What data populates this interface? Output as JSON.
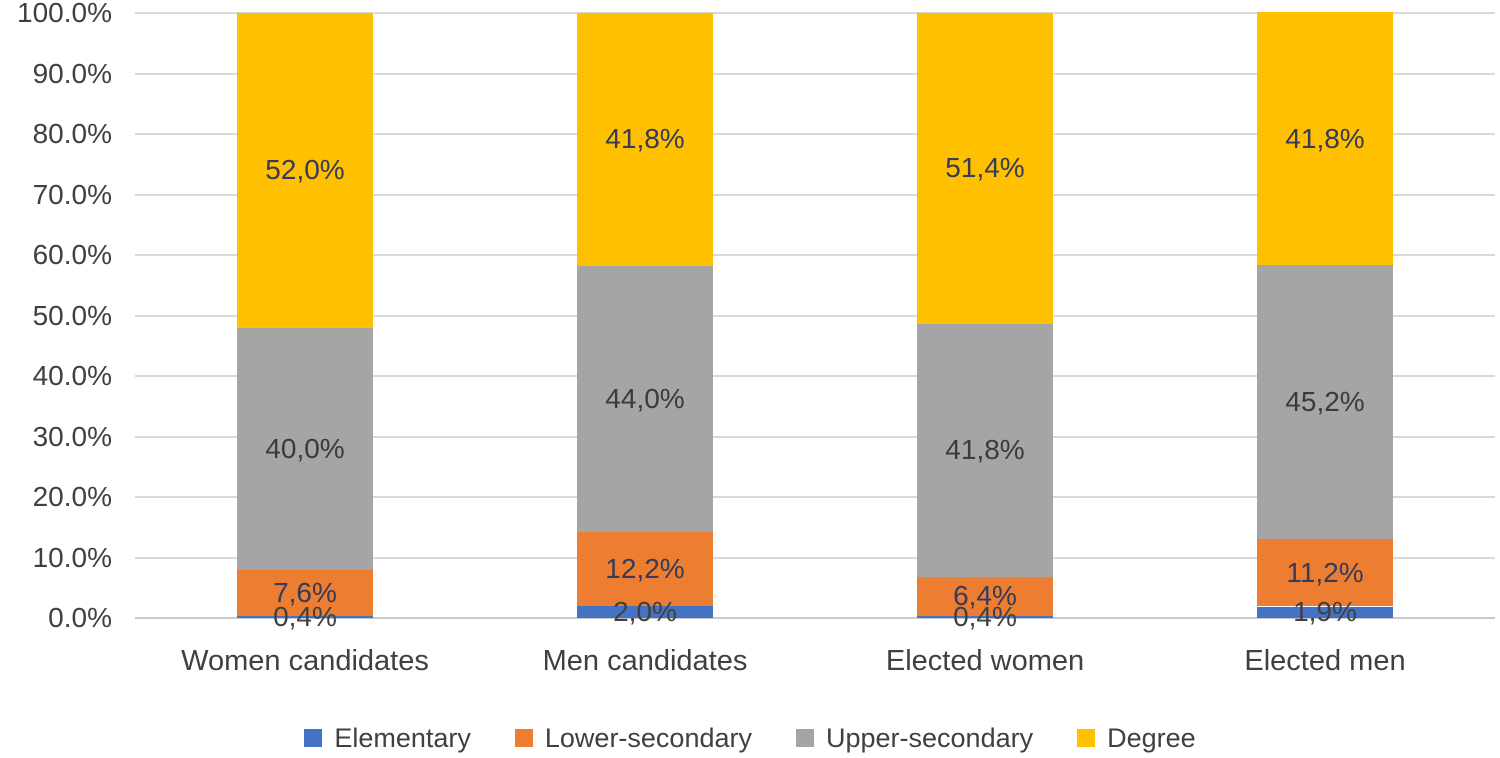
{
  "chart_data": {
    "type": "bar",
    "variant": "stacked-100-percent-column",
    "title": "",
    "xlabel": "",
    "ylabel": "",
    "grid": true,
    "categories": [
      "Women candidates",
      "Men candidates",
      "Elected women",
      "Elected men"
    ],
    "series": [
      {
        "name": "Elementary",
        "color": "#4472C4",
        "label_color": "#404040",
        "values": [
          0.4,
          2.0,
          0.4,
          1.9
        ],
        "labels": [
          "0,4%",
          "2,0%",
          "0,4%",
          "1,9%"
        ]
      },
      {
        "name": "Lower-secondary",
        "color": "#ED7D31",
        "label_color": "#353B58",
        "values": [
          7.6,
          12.2,
          6.4,
          11.2
        ],
        "labels": [
          "7,6%",
          "12,2%",
          "6,4%",
          "11,2%"
        ]
      },
      {
        "name": "Upper-secondary",
        "color": "#A5A5A5",
        "label_color": "#3B3B3B",
        "values": [
          40.0,
          44.0,
          41.8,
          45.2
        ],
        "labels": [
          "40,0%",
          "44,0%",
          "41,8%",
          "45,2%"
        ]
      },
      {
        "name": "Degree",
        "color": "#FFC000",
        "label_color": "#353B58",
        "values": [
          52.0,
          41.8,
          51.4,
          41.8
        ],
        "labels": [
          "52,0%",
          "41,8%",
          "51,4%",
          "41,8%"
        ]
      }
    ],
    "y_axis": {
      "min": 0,
      "max": 100,
      "tick_step": 10,
      "tick_labels": [
        "0.0%",
        "10.0%",
        "20.0%",
        "30.0%",
        "40.0%",
        "50.0%",
        "60.0%",
        "70.0%",
        "80.0%",
        "90.0%",
        "100.0%"
      ]
    },
    "legend": {
      "position": "bottom",
      "items": [
        "Elementary",
        "Lower-secondary",
        "Upper-secondary",
        "Degree"
      ]
    },
    "colors": {
      "gridline": "#D9D9D9",
      "axis_line": "#C9C9C9",
      "tick_text": "#404040",
      "category_text": "#404040",
      "legend_text": "#404040",
      "background": "#FFFFFF"
    }
  }
}
